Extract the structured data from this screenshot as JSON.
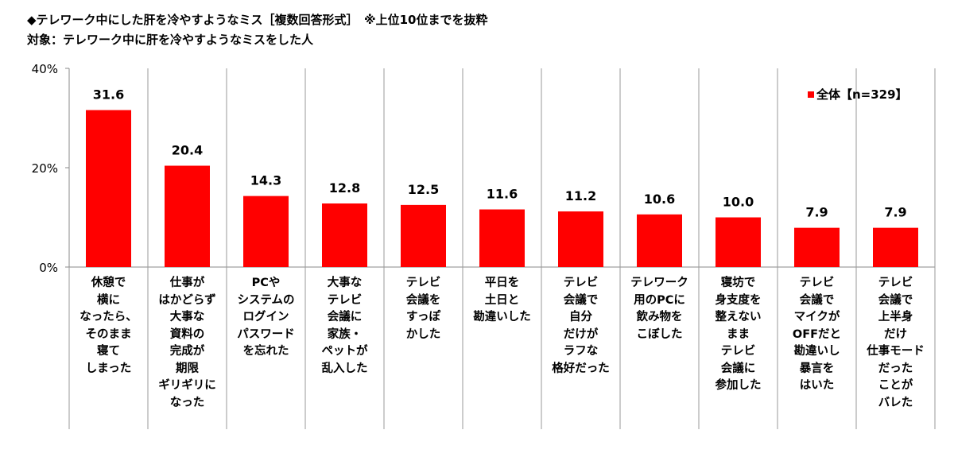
{
  "header": {
    "title_line1": "◆テレワーク中にした肝を冷やすようなミス［複数回答形式］　※上位10位までを抜粋",
    "title_line2": "対象：テレワーク中に肝を冷やすようなミスをした人"
  },
  "chart_data": {
    "type": "bar",
    "categories": [
      "休憩で\n横に\nなったら、\nそのまま\n寝て\nしまった",
      "仕事が\nはかどらず\n大事な\n資料の\n完成が\n期限\nギリギリに\nなった",
      "PCや\nシステムの\nログイン\nパスワード\nを忘れた",
      "大事な\nテレビ\n会議に\n家族・\nペットが\n乱入した",
      "テレビ\n会議を\nすっぽ\nかした",
      "平日を\n土日と\n勘違いした",
      "テレビ\n会議で\n自分\nだけが\nラフな\n格好だった",
      "テレワーク\n用のPCに\n飲み物を\nこぼした",
      "寝坊で\n身支度を\n整えない\nまま\nテレビ\n会議に\n参加した",
      "テレビ\n会議で\nマイクが\nOFFだと\n勘違いし\n暴言を\nはいた",
      "テレビ\n会議で\n上半身\nだけ\n仕事モード\nだった\nことが\nバレた"
    ],
    "series": [
      {
        "name": "全体【n=329】",
        "values": [
          31.6,
          20.4,
          14.3,
          12.8,
          12.5,
          11.6,
          11.2,
          10.6,
          10.0,
          7.9,
          7.9
        ],
        "data_labels": [
          "31.6",
          "20.4",
          "14.3",
          "12.8",
          "12.5",
          "11.6",
          "11.2",
          "10.6",
          "10.0",
          "7.9",
          "7.9"
        ]
      }
    ],
    "ylim": [
      0,
      40
    ],
    "yticks": [
      0,
      20,
      40
    ],
    "ytick_labels": [
      "0%",
      "20%",
      "40%"
    ],
    "grid": "vertical separators",
    "legend_position": "top-right",
    "colors": {
      "bar": "#ff0000",
      "legend_marker": "#ff0000",
      "axis": "#888888",
      "separator": "#9a9a9a"
    }
  }
}
